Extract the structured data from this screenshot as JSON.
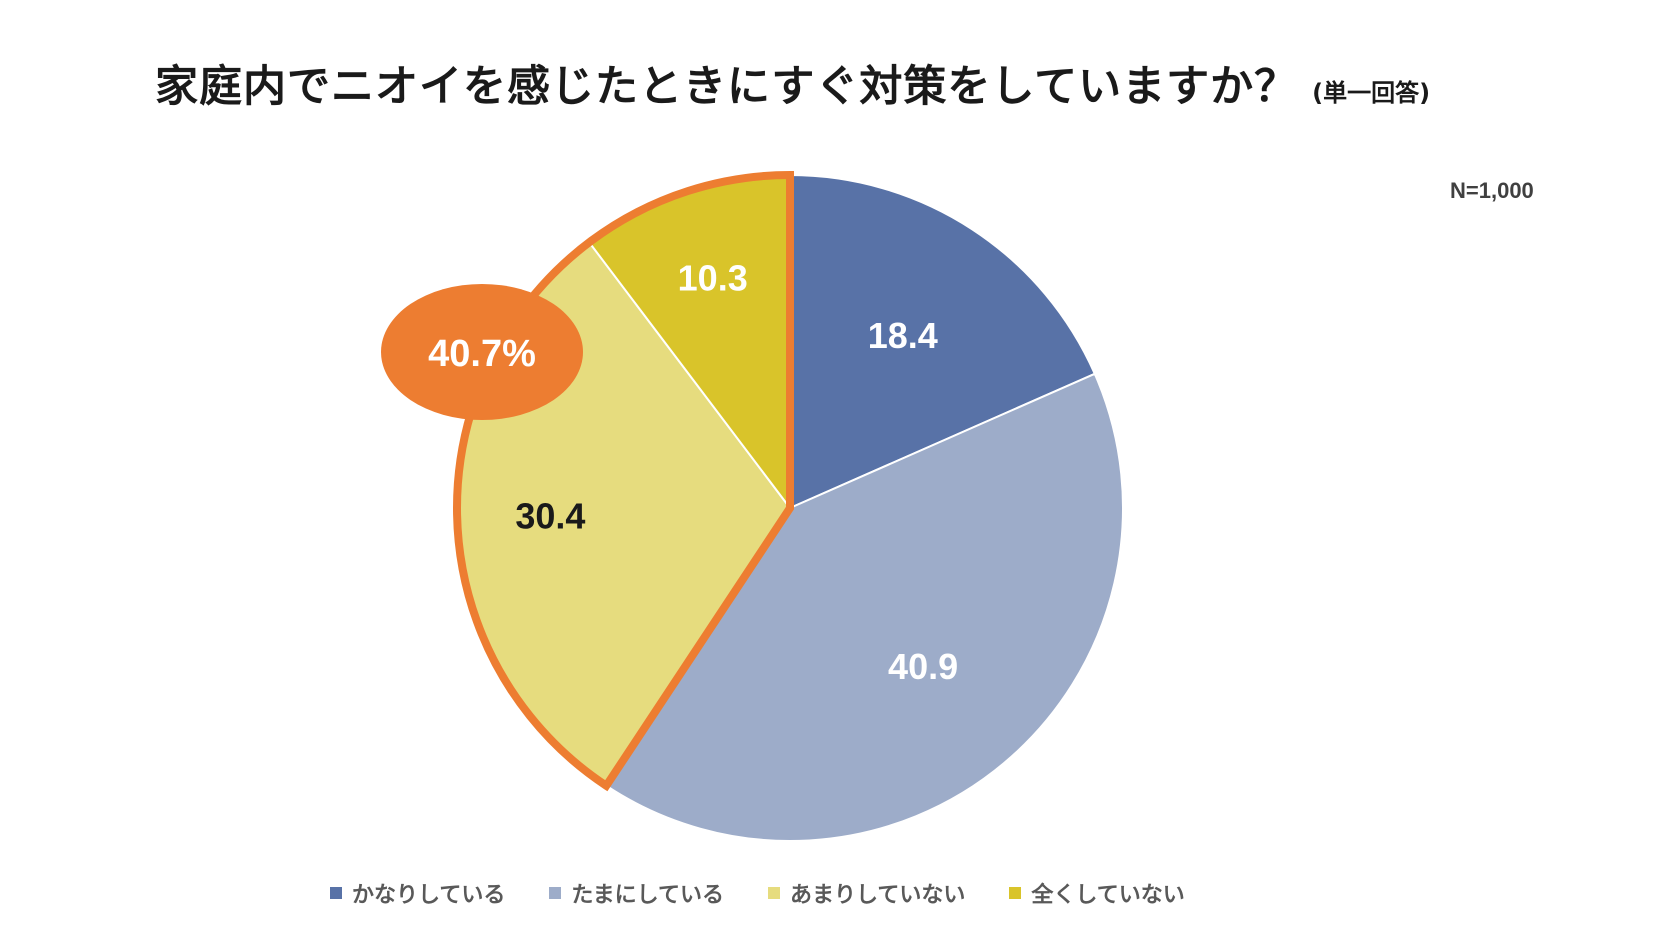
{
  "header": {
    "title": "家庭内でニオイを感じたときにすぐ対策をしていますか？",
    "subtitle": "(単一回答)",
    "sample_size": "N=1,000"
  },
  "highlight": {
    "label": "40.7%",
    "color": "#ED7D31"
  },
  "chart_data": {
    "type": "pie",
    "title": "家庭内でニオイを感じたときにすぐ対策をしていますか？",
    "start_angle": "12 o'clock, clockwise",
    "slices": [
      {
        "label": "かなりしている",
        "value": 18.4,
        "display": "18.4",
        "color": "#5872A7",
        "label_color": "#FFFFFF"
      },
      {
        "label": "たまにしている",
        "value": 40.9,
        "display": "40.9",
        "color": "#9DACC9",
        "label_color": "#FFFFFF"
      },
      {
        "label": "あまりしていない",
        "value": 30.4,
        "display": "30.4",
        "color": "#E6DC7E",
        "label_color": "#1A1A1A"
      },
      {
        "label": "全くしていない",
        "value": 10.3,
        "display": "10.3",
        "color": "#D9C42A",
        "label_color": "#FFFFFF"
      }
    ],
    "highlighted_slices": [
      "あまりしていない",
      "全くしていない"
    ],
    "highlight_total": "40.7%",
    "legend_position": "bottom"
  }
}
